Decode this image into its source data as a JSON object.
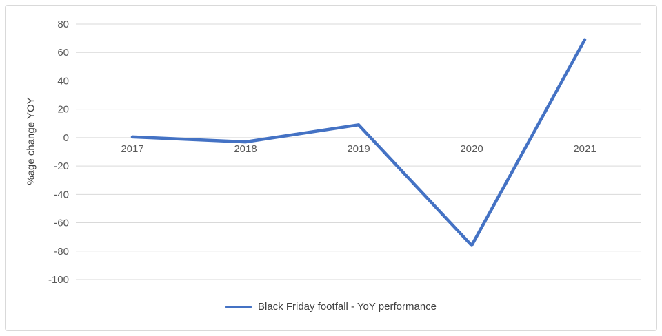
{
  "chart_data": {
    "type": "line",
    "title": "",
    "categories": [
      "2017",
      "2018",
      "2019",
      "2020",
      "2021"
    ],
    "series": [
      {
        "name": "Black Friday footfall - YoY performance",
        "values": [
          0.5,
          -3,
          9,
          -76,
          69
        ]
      }
    ],
    "xlabel": "",
    "ylabel": "%age change YOY",
    "ylim": [
      -100,
      80
    ],
    "yticks": [
      80,
      60,
      40,
      20,
      0,
      -20,
      -40,
      -60,
      -80,
      -100
    ],
    "grid": "horizontal",
    "legend_position": "bottom",
    "colors": {
      "line": "#4472C4",
      "gridline": "#D9D9D9",
      "axis_text": "#595959",
      "label_text": "#404040",
      "frame_border": "#D9D9D9"
    }
  }
}
